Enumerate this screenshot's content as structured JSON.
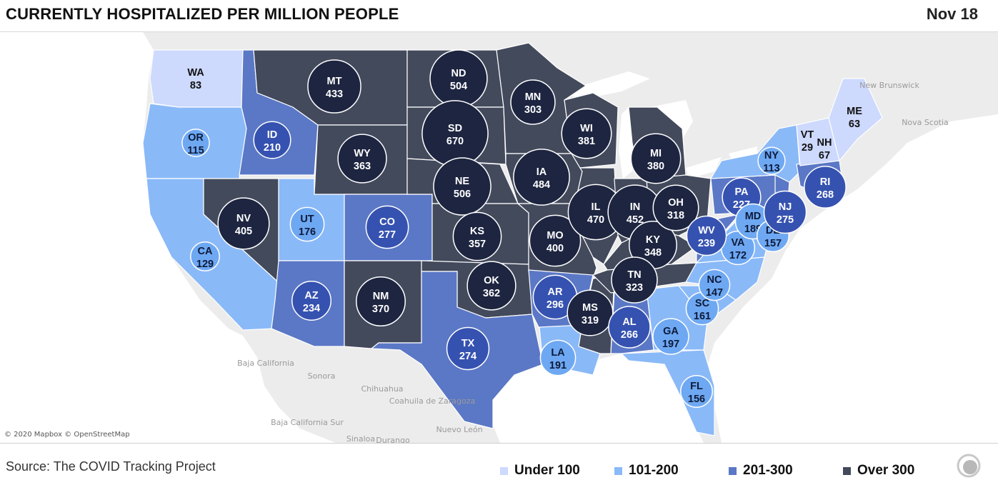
{
  "header": {
    "title": "CURRENTLY HOSPITALIZED PER MILLION PEOPLE",
    "date": "Nov 18"
  },
  "colors": {
    "under100": "#cdd9fd",
    "101_200": "#8ab9f8",
    "201_300": "#5b78c6",
    "over300": "#434a5c",
    "bubble_dark": "#1d2540",
    "bubble_mid": "#3652b0",
    "bubble_light": "#6ea8f2"
  },
  "map": {
    "attribution": "© 2020 Mapbox © OpenStreetMap",
    "geo_labels": [
      "New Brunswick",
      "Nova Scotia",
      "Baja California",
      "Sonora",
      "Chihuahua",
      "Coahuila de Zaragoza",
      "Baja California Sur",
      "Nuevo León",
      "Sinaloa",
      "Durango"
    ],
    "states": [
      {
        "abbr": "WA",
        "value": 83,
        "bin": "under100"
      },
      {
        "abbr": "OR",
        "value": 115,
        "bin": "101_200"
      },
      {
        "abbr": "CA",
        "value": 129,
        "bin": "101_200"
      },
      {
        "abbr": "ID",
        "value": 210,
        "bin": "201_300"
      },
      {
        "abbr": "NV",
        "value": 405,
        "bin": "over300"
      },
      {
        "abbr": "UT",
        "value": 176,
        "bin": "101_200"
      },
      {
        "abbr": "AZ",
        "value": 234,
        "bin": "201_300"
      },
      {
        "abbr": "MT",
        "value": 433,
        "bin": "over300"
      },
      {
        "abbr": "WY",
        "value": 363,
        "bin": "over300"
      },
      {
        "abbr": "CO",
        "value": 277,
        "bin": "201_300"
      },
      {
        "abbr": "NM",
        "value": 370,
        "bin": "over300"
      },
      {
        "abbr": "ND",
        "value": 504,
        "bin": "over300"
      },
      {
        "abbr": "SD",
        "value": 670,
        "bin": "over300"
      },
      {
        "abbr": "NE",
        "value": 506,
        "bin": "over300"
      },
      {
        "abbr": "KS",
        "value": 357,
        "bin": "over300"
      },
      {
        "abbr": "OK",
        "value": 362,
        "bin": "over300"
      },
      {
        "abbr": "TX",
        "value": 274,
        "bin": "201_300"
      },
      {
        "abbr": "MN",
        "value": 303,
        "bin": "over300"
      },
      {
        "abbr": "IA",
        "value": 484,
        "bin": "over300"
      },
      {
        "abbr": "MO",
        "value": 400,
        "bin": "over300"
      },
      {
        "abbr": "AR",
        "value": 296,
        "bin": "201_300"
      },
      {
        "abbr": "LA",
        "value": 191,
        "bin": "101_200"
      },
      {
        "abbr": "WI",
        "value": 381,
        "bin": "over300"
      },
      {
        "abbr": "IL",
        "value": 470,
        "bin": "over300"
      },
      {
        "abbr": "MS",
        "value": 319,
        "bin": "over300"
      },
      {
        "abbr": "MI",
        "value": 380,
        "bin": "over300"
      },
      {
        "abbr": "IN",
        "value": 452,
        "bin": "over300"
      },
      {
        "abbr": "KY",
        "value": 348,
        "bin": "over300"
      },
      {
        "abbr": "TN",
        "value": 323,
        "bin": "over300"
      },
      {
        "abbr": "AL",
        "value": 266,
        "bin": "201_300"
      },
      {
        "abbr": "OH",
        "value": 318,
        "bin": "over300"
      },
      {
        "abbr": "GA",
        "value": 197,
        "bin": "101_200"
      },
      {
        "abbr": "FL",
        "value": 156,
        "bin": "101_200"
      },
      {
        "abbr": "SC",
        "value": 161,
        "bin": "101_200"
      },
      {
        "abbr": "NC",
        "value": 147,
        "bin": "101_200"
      },
      {
        "abbr": "VA",
        "value": 172,
        "bin": "101_200"
      },
      {
        "abbr": "WV",
        "value": 239,
        "bin": "201_300"
      },
      {
        "abbr": "PA",
        "value": 227,
        "bin": "201_300"
      },
      {
        "abbr": "MD",
        "value": 189,
        "bin": "101_200"
      },
      {
        "abbr": "DE",
        "value": 157,
        "bin": "101_200"
      },
      {
        "abbr": "NJ",
        "value": 275,
        "bin": "201_300"
      },
      {
        "abbr": "NY",
        "value": 113,
        "bin": "101_200"
      },
      {
        "abbr": "RI",
        "value": 268,
        "bin": "201_300"
      },
      {
        "abbr": "VT",
        "value": 29,
        "bin": "under100"
      },
      {
        "abbr": "NH",
        "value": 67,
        "bin": "under100"
      },
      {
        "abbr": "ME",
        "value": 63,
        "bin": "under100"
      }
    ]
  },
  "footer": {
    "source": "Source: The COVID Tracking Project",
    "legend": [
      {
        "label": "Under 100",
        "bin": "under100"
      },
      {
        "label": "101-200",
        "bin": "101_200"
      },
      {
        "label": "201-300",
        "bin": "201_300"
      },
      {
        "label": "Over 300",
        "bin": "over300"
      }
    ]
  }
}
